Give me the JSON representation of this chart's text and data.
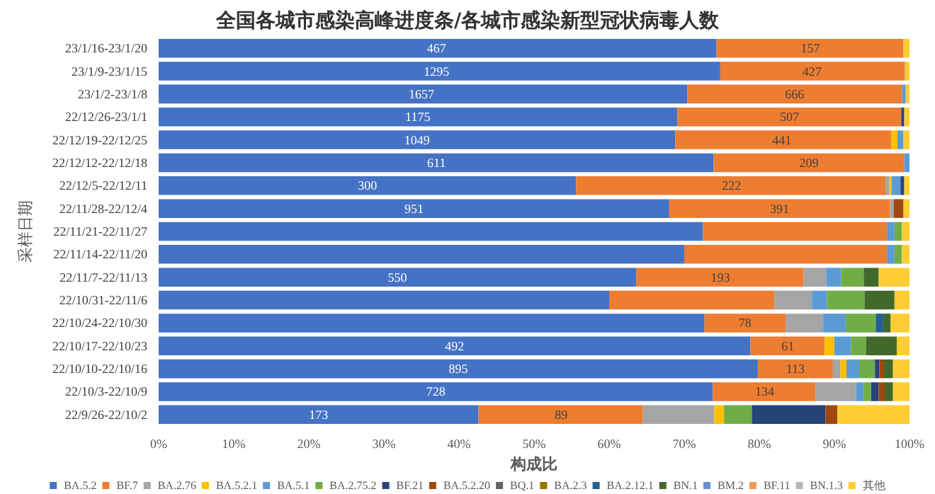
{
  "chart_data": {
    "type": "bar",
    "orientation": "horizontal",
    "stacked": true,
    "title": "全国各城市感染高峰进度条/各城市感染新型冠状病毒人数",
    "xlabel": "构成比",
    "ylabel": "采样日期",
    "categories": [
      "23/1/16-23/1/20",
      "23/1/9-23/1/15",
      "23/1/2-23/1/8",
      "22/12/26-23/1/1",
      "22/12/19-22/12/25",
      "22/12/12-22/12/18",
      "22/12/5-22/12/11",
      "22/11/28-22/12/4",
      "22/11/21-22/11/27",
      "22/11/14-22/11/20",
      "22/11/7-22/11/13",
      "22/10/31-22/11/6",
      "22/10/24-22/10/30",
      "22/10/17-22/10/23",
      "22/10/10-22/10/16",
      "22/10/3-22/10/9",
      "22/9/26-22/10/2"
    ],
    "xlim": [
      0,
      100
    ],
    "xticks": [
      {
        "value": 0,
        "label": "0%"
      },
      {
        "value": 10,
        "label": "10%"
      },
      {
        "value": 20,
        "label": "20%"
      },
      {
        "value": 30,
        "label": "30%"
      },
      {
        "value": 40,
        "label": "40%"
      },
      {
        "value": 50,
        "label": "50%"
      },
      {
        "value": 60,
        "label": "60%"
      },
      {
        "value": 70,
        "label": "70%"
      },
      {
        "value": 80,
        "label": "80%"
      },
      {
        "value": 90,
        "label": "90%"
      },
      {
        "value": 100,
        "label": "100%"
      }
    ],
    "grid": false,
    "legend": "bottom",
    "annotations": [
      {
        "text": "467",
        "x": 37,
        "y": "23/1/16-23/1/20"
      },
      {
        "text": "157",
        "x": 86.8,
        "y": "23/1/16-23/1/20"
      },
      {
        "text": "1295",
        "x": 37,
        "y": "23/1/9-23/1/15"
      },
      {
        "text": "427",
        "x": 87,
        "y": "23/1/9-23/1/15"
      },
      {
        "text": "1657",
        "x": 35,
        "y": "23/1/2-23/1/8"
      },
      {
        "text": "666",
        "x": 84.7,
        "y": "23/1/2-23/1/8"
      },
      {
        "text": "1175",
        "x": 34.5,
        "y": "22/12/26-23/1/1"
      },
      {
        "text": "507",
        "x": 84,
        "y": "22/12/26-23/1/1"
      },
      {
        "text": "1049",
        "x": 34.4,
        "y": "22/12/19-22/12/25"
      },
      {
        "text": "441",
        "x": 83,
        "y": "22/12/19-22/12/25"
      },
      {
        "text": "611",
        "x": 37,
        "y": "22/12/12-22/12/18"
      },
      {
        "text": "209",
        "x": 86.6,
        "y": "22/12/12-22/12/18"
      },
      {
        "text": "300",
        "x": 27.8,
        "y": "22/12/5-22/12/11"
      },
      {
        "text": "222",
        "x": 76.3,
        "y": "22/12/5-22/12/11"
      },
      {
        "text": "951",
        "x": 34,
        "y": "22/11/28-22/12/4"
      },
      {
        "text": "391",
        "x": 82.7,
        "y": "22/11/28-22/12/4"
      },
      {
        "text": "550",
        "x": 31.8,
        "y": "22/11/7-22/11/13"
      },
      {
        "text": "193",
        "x": 74.8,
        "y": "22/11/7-22/11/13"
      },
      {
        "text": "78",
        "x": 78.1,
        "y": "22/10/24-22/10/30"
      },
      {
        "text": "492",
        "x": 39.4,
        "y": "22/10/17-22/10/23"
      },
      {
        "text": "61",
        "x": 83.8,
        "y": "22/10/17-22/10/23"
      },
      {
        "text": "895",
        "x": 39.9,
        "y": "22/10/10-22/10/16"
      },
      {
        "text": "113",
        "x": 84.8,
        "y": "22/10/10-22/10/16"
      },
      {
        "text": "728",
        "x": 36.9,
        "y": "22/10/3-22/10/9"
      },
      {
        "text": "134",
        "x": 80.7,
        "y": "22/10/3-22/10/9"
      },
      {
        "text": "173",
        "x": 21.3,
        "y": "22/9/26-22/10/2"
      },
      {
        "text": "89",
        "x": 53.6,
        "y": "22/9/26-22/10/2"
      }
    ],
    "series": [
      {
        "name": "BA.5.2",
        "color": "#4472c4",
        "values": [
          74.3,
          74.8,
          70.4,
          69.1,
          68.8,
          73.9,
          55.6,
          68.0,
          72.5,
          70,
          63.6,
          60,
          72.7,
          78.8,
          79.8,
          73.8,
          42.6
        ]
      },
      {
        "name": "BF.7",
        "color": "#ed7d31",
        "values": [
          24.9,
          24.6,
          28.6,
          29.8,
          28.8,
          25.4,
          41.2,
          29.4,
          24.5,
          27,
          22.3,
          22,
          10.8,
          9.9,
          10,
          13.7,
          21.9
        ]
      },
      {
        "name": "BA.2.76",
        "color": "#a5a5a5",
        "values": [
          null,
          null,
          null,
          null,
          null,
          null,
          0.5,
          0.5,
          null,
          null,
          3,
          5,
          5,
          null,
          1,
          5.4,
          9.5
        ]
      },
      {
        "name": "BA.5.2.1",
        "color": "#ffc000",
        "values": [
          null,
          null,
          null,
          null,
          0.8,
          null,
          0.3,
          null,
          null,
          null,
          null,
          null,
          null,
          1.3,
          0.8,
          null,
          1.3
        ]
      },
      {
        "name": "BA.5.1",
        "color": "#5b9bd5",
        "values": [
          null,
          null,
          0.5,
          null,
          0.8,
          0.7,
          1.2,
          null,
          1.0,
          1,
          2,
          2,
          3,
          2.2,
          1.7,
          1,
          null
        ]
      },
      {
        "name": "BA.2.75.2",
        "color": "#70ad47",
        "values": [
          null,
          null,
          null,
          null,
          null,
          null,
          null,
          null,
          1.0,
          1,
          3,
          5,
          4,
          2,
          2.1,
          1,
          3.7
        ]
      },
      {
        "name": "BF.21",
        "color": "#264478",
        "values": [
          null,
          null,
          null,
          0.4,
          null,
          null,
          0.5,
          null,
          null,
          null,
          null,
          null,
          null,
          null,
          0.6,
          1,
          9.8
        ]
      },
      {
        "name": "BA.5.2.20",
        "color": "#9e480e",
        "values": [
          null,
          null,
          null,
          null,
          null,
          null,
          null,
          1.3,
          null,
          null,
          null,
          null,
          null,
          null,
          0.6,
          0.8,
          1.6
        ]
      },
      {
        "name": "BQ.1",
        "color": "#636363",
        "values": [
          null,
          null,
          null,
          null,
          null,
          null,
          null,
          null,
          null,
          null,
          null,
          null,
          null,
          null,
          null,
          null,
          null
        ]
      },
      {
        "name": "BA.2.3",
        "color": "#997300",
        "values": [
          null,
          null,
          null,
          null,
          null,
          null,
          null,
          null,
          null,
          null,
          null,
          null,
          null,
          null,
          null,
          null,
          null
        ]
      },
      {
        "name": "BA.2.12.1",
        "color": "#255e91",
        "values": [
          null,
          null,
          null,
          null,
          null,
          null,
          null,
          null,
          null,
          null,
          null,
          null,
          1,
          null,
          null,
          null,
          null
        ]
      },
      {
        "name": "BN.1",
        "color": "#43682b",
        "values": [
          null,
          null,
          null,
          null,
          null,
          null,
          null,
          null,
          null,
          null,
          2,
          4,
          1,
          4.1,
          1.2,
          1.1,
          null
        ]
      },
      {
        "name": "BM.2",
        "color": "#698ed0",
        "values": [
          null,
          null,
          null,
          null,
          null,
          null,
          null,
          null,
          null,
          null,
          null,
          null,
          null,
          null,
          null,
          null,
          null
        ]
      },
      {
        "name": "BF.11",
        "color": "#f1975a",
        "values": [
          null,
          null,
          null,
          null,
          null,
          null,
          null,
          null,
          null,
          null,
          null,
          null,
          null,
          null,
          null,
          null,
          null
        ]
      },
      {
        "name": "BN.1.3",
        "color": "#b7b7b7",
        "values": [
          null,
          null,
          null,
          null,
          null,
          null,
          null,
          null,
          null,
          null,
          null,
          null,
          null,
          null,
          null,
          null,
          null
        ]
      },
      {
        "name": "其他",
        "color": "#ffcd33",
        "values": [
          0.8,
          0.6,
          0.5,
          0.7,
          0.8,
          null,
          0.7,
          0.8,
          1.0,
          1,
          4.1,
          2,
          2.5,
          1.7,
          2.2,
          2.2,
          9.6
        ]
      }
    ]
  }
}
